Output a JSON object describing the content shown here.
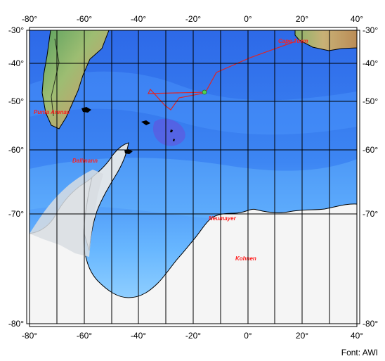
{
  "map": {
    "longitude_ticks": [
      "-80°",
      "-60°",
      "-40°",
      "-20°",
      "0°",
      "20°",
      "40°"
    ],
    "latitude_ticks": [
      "-30°",
      "-40°",
      "-50°",
      "-60°",
      "-70°",
      "-80°"
    ],
    "place_labels": {
      "cape_town": "Cape Town",
      "punta_arenas": "Punta Arenas",
      "dallmann": "Dallmann",
      "neumayer": "Neumayer",
      "kohnen": "Kohnen"
    },
    "credit": "Font: AWI",
    "colors": {
      "ocean_deep": "#2f70ea",
      "ocean_mid": "#3f8ef6",
      "ocean_shelf": "#8fd0ff",
      "land_green": "#78b76a",
      "land_brown": "#c7a06e",
      "ice": "#f4f4f4",
      "track": "#e02525",
      "grid": "#000000"
    }
  }
}
